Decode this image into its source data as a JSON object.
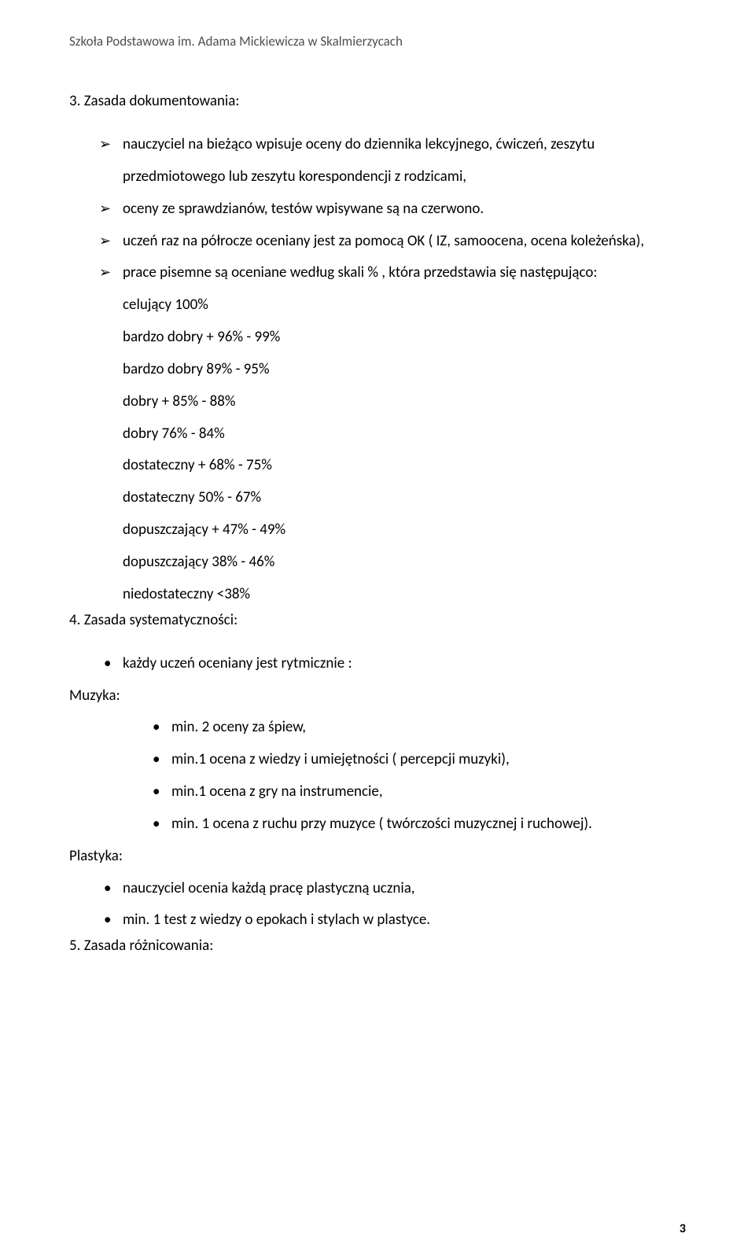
{
  "header": "Szkoła Podstawowa im. Adama Mickiewicza w Skalmierzycach",
  "section3": {
    "heading": "3. Zasada dokumentowania:",
    "items": [
      "nauczyciel na bieżąco wpisuje oceny do dziennika lekcyjnego, ćwiczeń, zeszytu przedmiotowego lub zeszytu korespondencji z rodzicami,",
      "oceny ze  sprawdzianów, testów wpisywane są na czerwono.",
      "uczeń raz na półrocze oceniany jest za pomocą OK ( IZ, samoocena, ocena koleżeńska),",
      "prace pisemne są oceniane według skali % , która przedstawia się następująco:"
    ],
    "scale": [
      "celujący 100%",
      "bardzo dobry + 96% - 99%",
      "bardzo dobry 89% - 95%",
      "dobry + 85% - 88%",
      "dobry 76% - 84%",
      "dostateczny + 68% - 75%",
      "dostateczny  50% - 67%",
      "dopuszczający + 47% - 49%",
      "dopuszczający 38% - 46%",
      "niedostateczny <38%"
    ]
  },
  "section4": {
    "heading": "4. Zasada systematyczności:",
    "intro": "każdy uczeń oceniany jest rytmicznie :",
    "muzyka": {
      "label": "Muzyka:",
      "items": [
        "min. 2 oceny za śpiew,",
        "min.1 ocena z wiedzy i umiejętności ( percepcji muzyki),",
        "min.1 ocena z gry na instrumencie,",
        "min. 1 ocena z ruchu przy muzyce ( twórczości muzycznej i ruchowej)."
      ]
    },
    "plastyka": {
      "label": "Plastyka:",
      "items": [
        "nauczyciel ocenia każdą pracę plastyczną ucznia,",
        " min. 1 test z wiedzy o epokach i stylach w plastyce."
      ]
    }
  },
  "section5": {
    "heading": "5. Zasada różnicowania:"
  },
  "pageNumber": "3"
}
